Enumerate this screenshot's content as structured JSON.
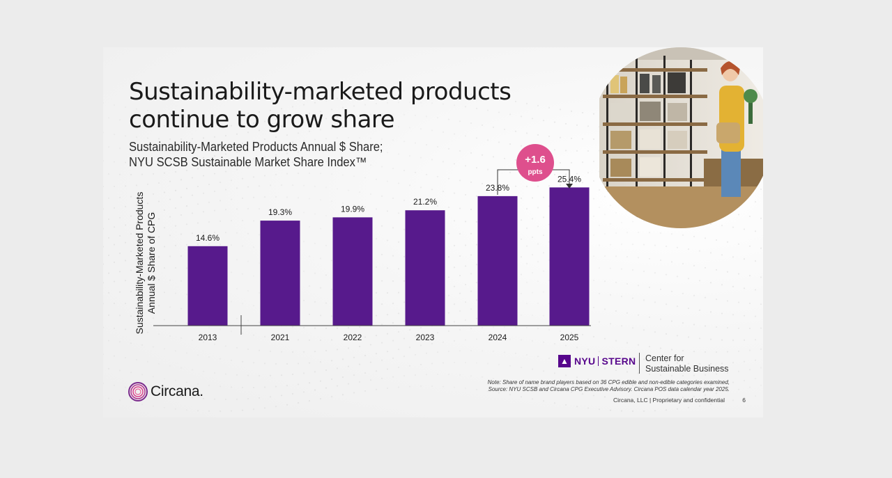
{
  "slide": {
    "title": "Sustainability-marketed products continue to grow share",
    "subtitle_line1": "Sustainability-Marketed Products Annual $ Share;",
    "subtitle_line2": "NYU SCSB Sustainable Market Share Index™",
    "callout_value": "+1.6",
    "callout_unit": "ppts",
    "nyu_word": "NYU",
    "stern_word": "STERN",
    "center_line1": "Center for",
    "center_line2": "Sustainable Business",
    "note_line1": "Note: Share of name brand players based on 36 CPG edible and non-edible categories examined,",
    "note_line2": "Source: NYU SCSB and Circana CPG Executive Advisory. Circana POS data calendar year 2025.",
    "footer": "Circana, LLC | Proprietary and confidential",
    "page_number": "6",
    "logo_text": "Circana."
  },
  "colors": {
    "bar": "#571a8c",
    "callout": "#d94a8c",
    "callout_top": "#e9558f"
  },
  "chart_data": {
    "type": "bar",
    "categories": [
      "2013",
      "2021",
      "2022",
      "2023",
      "2024",
      "2025"
    ],
    "values": [
      14.6,
      19.3,
      19.9,
      21.2,
      23.8,
      25.4
    ],
    "value_labels": [
      "14.6%",
      "19.3%",
      "19.9%",
      "21.2%",
      "23.8%",
      "25.4%"
    ],
    "ylabel_line1": "Sustainability-Marketed Products",
    "ylabel_line2": "Annual $ Share of CPG",
    "axis_break_after": "2013",
    "grid": false,
    "ylim": [
      0,
      27
    ]
  }
}
